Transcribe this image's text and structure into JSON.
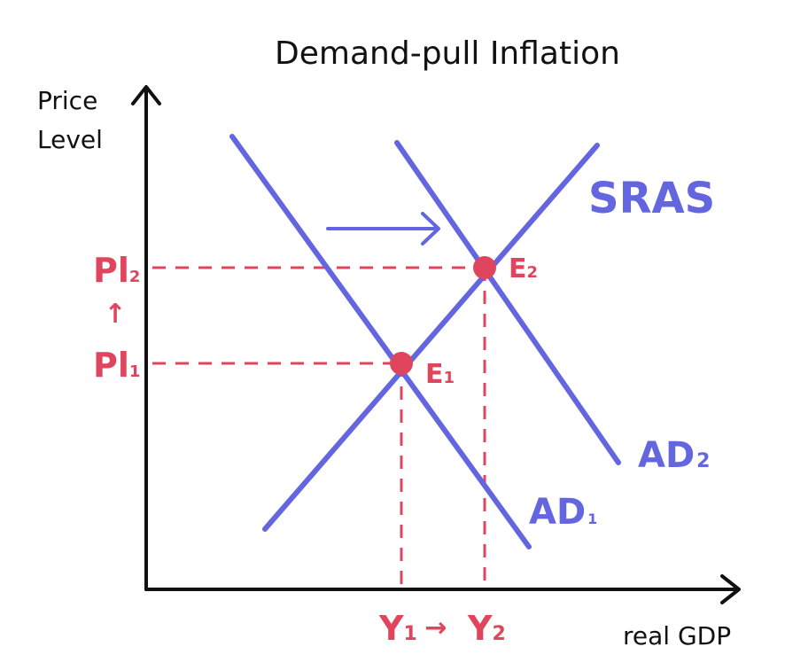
{
  "title": "Demand-pull Inflation",
  "y_axis_label": {
    "line1": "Price",
    "line2": "Level"
  },
  "x_axis_label": "real GDP",
  "curves": {
    "sras": "SRAS",
    "ad1": {
      "main": "AD",
      "sub": "1"
    },
    "ad2": {
      "main": "AD",
      "sub": "2"
    }
  },
  "points": {
    "e1": {
      "main": "E",
      "sub": "1"
    },
    "e2": {
      "main": "E",
      "sub": "2"
    }
  },
  "price_levels": {
    "pl1": {
      "main": "Pl",
      "sub": "1"
    },
    "pl2": {
      "main": "Pl",
      "sub": "2"
    },
    "shift": "↑"
  },
  "outputs": {
    "y1": {
      "main": "Y",
      "sub": "1"
    },
    "y2": {
      "main": "Y",
      "sub": "2"
    },
    "shift": "→"
  },
  "colors": {
    "axes": "#111111",
    "curves": "#6466e0",
    "equilibrium": "#e0455e"
  }
}
